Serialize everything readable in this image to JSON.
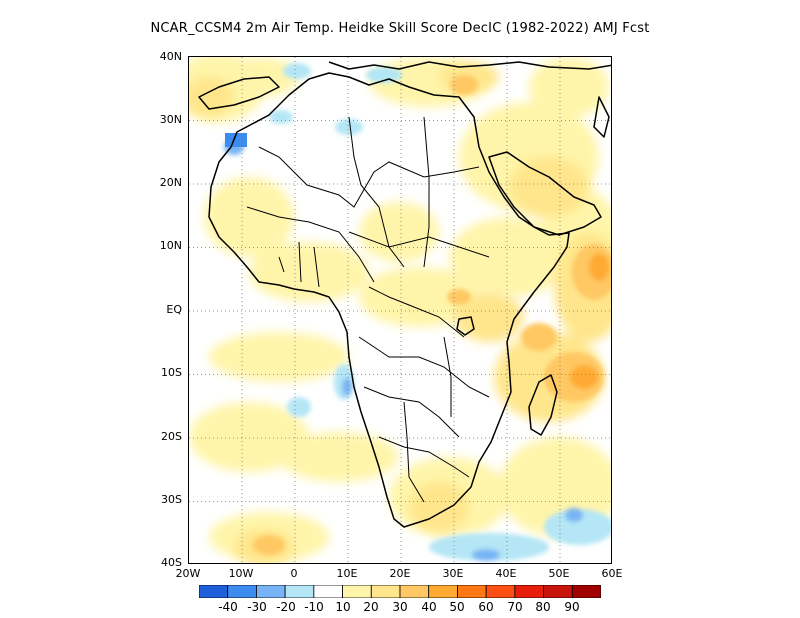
{
  "title": "NCAR_CCSM4  2m Air Temp. Heidke Skill Score DecIC (1982-2022) AMJ Fcst",
  "map": {
    "lon_range": [
      -20,
      60
    ],
    "lat_range": [
      -40,
      40
    ],
    "lat_labels": [
      "40N",
      "30N",
      "20N",
      "10N",
      "EQ",
      "10S",
      "20S",
      "30S",
      "40S"
    ],
    "lon_labels": [
      "20W",
      "10W",
      "0",
      "10E",
      "20E",
      "30E",
      "40E",
      "50E",
      "60E"
    ],
    "grid_style": "dotted"
  },
  "colorbar": {
    "colors": [
      "#1f5fd9",
      "#3c8cf0",
      "#78b4f5",
      "#b4e6f5",
      "#ffffff",
      "#fff5aa",
      "#ffe68c",
      "#ffc864",
      "#ffaa32",
      "#ff7814",
      "#ff5014",
      "#e61e0a",
      "#c8140a",
      "#a00000"
    ],
    "labels": [
      "-40",
      "-30",
      "-20",
      "-10",
      "10",
      "20",
      "30",
      "40",
      "50",
      "60",
      "70",
      "80",
      "90"
    ]
  }
}
